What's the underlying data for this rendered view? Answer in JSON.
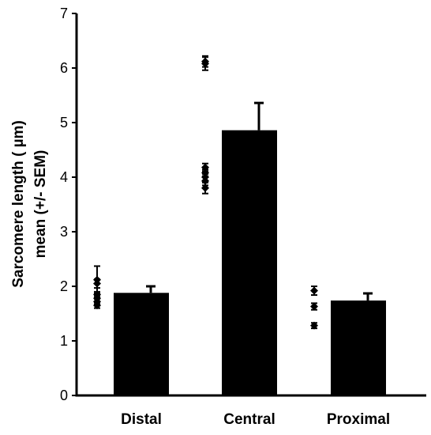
{
  "chart_data": {
    "type": "bar",
    "title": "",
    "xlabel": "",
    "ylabel_lines": [
      "Sarcomere length ( µm)",
      "mean (+/- SEM)"
    ],
    "ylim": [
      0,
      7
    ],
    "yticks": [
      0,
      1,
      2,
      3,
      4,
      5,
      6,
      7
    ],
    "categories": [
      "Distal",
      "Central",
      "Proximal"
    ],
    "values": [
      1.88,
      4.86,
      1.74
    ],
    "sem": [
      0.12,
      0.5,
      0.13
    ],
    "individual_points": [
      [
        1.65,
        1.72,
        1.78,
        1.85,
        2.05,
        2.12
      ],
      [
        3.8,
        3.93,
        4.0,
        4.08,
        4.18,
        6.08,
        6.12
      ],
      [
        1.28,
        1.63,
        1.92
      ]
    ],
    "individual_point_sem": [
      [
        0.05,
        0.05,
        0.05,
        0.05,
        0.08,
        0.25
      ],
      [
        0.1,
        0.08,
        0.06,
        0.06,
        0.07,
        0.12,
        0.1
      ],
      [
        0.05,
        0.06,
        0.08
      ]
    ],
    "grid": false,
    "colors": {
      "bar": "#000000",
      "points": "#000000"
    }
  }
}
